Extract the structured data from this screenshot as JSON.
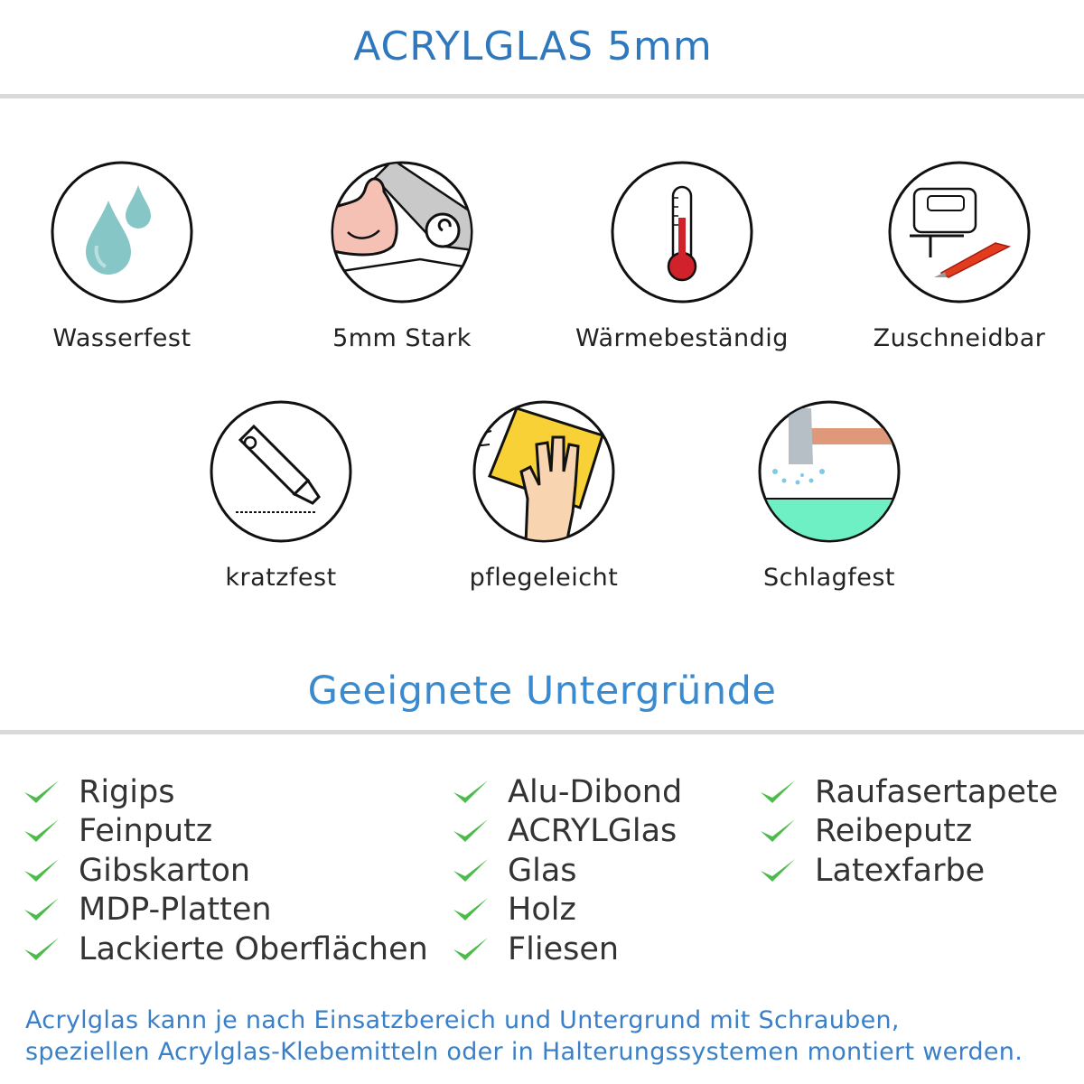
{
  "header": {
    "title": "ACRYLGLAS 5mm"
  },
  "features": [
    {
      "label": "Wasserfest",
      "icon": "water-drops-icon"
    },
    {
      "label": "5mm Stark",
      "icon": "strong-arm-icon"
    },
    {
      "label": "Wärmebeständig",
      "icon": "thermometer-icon"
    },
    {
      "label": "Zuschneidbar",
      "icon": "jigsaw-cutter-icon"
    },
    {
      "label": "kratzfest",
      "icon": "utility-knife-icon"
    },
    {
      "label": "pflegeleicht",
      "icon": "cleaning-hand-icon"
    },
    {
      "label": "Schlagfest",
      "icon": "hammer-icon"
    }
  ],
  "surfaces": {
    "title": "Geeignete Untergründe",
    "check_color": "#4cbb4a",
    "columns": [
      [
        "Rigips",
        "Feinputz",
        "Gibskarton",
        "MDP-Platten",
        "Lackierte Oberflächen"
      ],
      [
        "Alu-Dibond",
        "ACRYLGlas",
        "Glas",
        "Holz",
        "Fliesen"
      ],
      [
        "Raufasertapete",
        "Reibeputz",
        "Latexfarbe"
      ]
    ]
  },
  "footer": {
    "line1": "Acrylglas kann je nach Einsatzbereich und Untergrund mit Schrauben,",
    "line2": "speziellen Acrylglas-Klebemitteln oder in Halterungssystemen montiert werden."
  }
}
